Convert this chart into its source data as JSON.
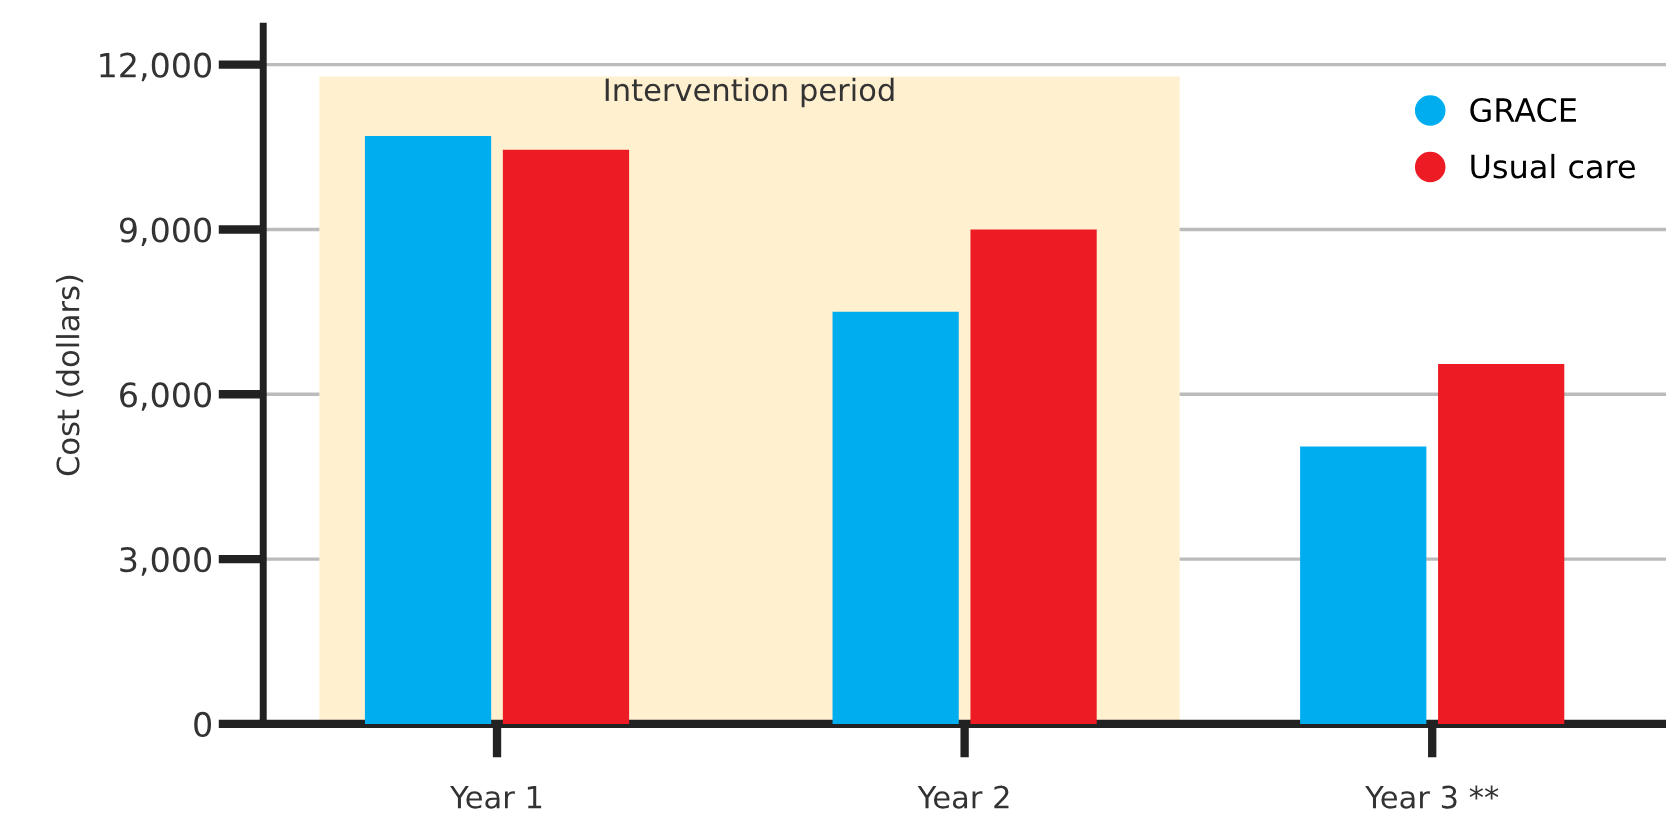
{
  "chart_data": {
    "type": "bar",
    "ylabel": "Cost (dollars)",
    "categories": [
      "Year 1",
      "Year 2",
      "Year 3 **"
    ],
    "series": [
      {
        "name": "GRACE",
        "color": "#00aeef",
        "values": [
          10700,
          7500,
          5050
        ]
      },
      {
        "name": "Usual care",
        "color": "#ed1c24",
        "values": [
          10450,
          9000,
          6550
        ]
      }
    ],
    "ylim": [
      0,
      12700
    ],
    "yticks": [
      {
        "value": 0,
        "label": "0"
      },
      {
        "value": 3000,
        "label": "3,000"
      },
      {
        "value": 6000,
        "label": "6,000"
      },
      {
        "value": 9000,
        "label": "9,000"
      },
      {
        "value": 12000,
        "label": "12,000"
      }
    ],
    "grid": "y",
    "legend": "top right",
    "bands": [
      {
        "axis": "x",
        "from": "Year 1",
        "to": "Year 2",
        "label": "Intervention period",
        "color": "#fff0d0"
      }
    ]
  }
}
